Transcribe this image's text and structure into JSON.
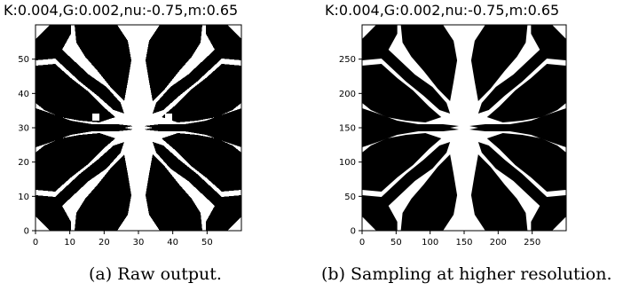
{
  "figures": [
    {
      "title": "K:0.004,G:0.002,nu:-0.75,m:0.65",
      "caption": "(a) Raw output.",
      "x_ticks": [
        "0",
        "10",
        "20",
        "30",
        "40",
        "50"
      ],
      "y_ticks": [
        "0",
        "10",
        "20",
        "30",
        "40",
        "50"
      ]
    },
    {
      "title": "K:0.004,G:0.002,nu:-0.75,m:0.65",
      "caption": "(b) Sampling at higher resolution.",
      "x_ticks": [
        "0",
        "50",
        "100",
        "150",
        "200",
        "250"
      ],
      "y_ticks": [
        "0",
        "50",
        "100",
        "150",
        "200",
        "250"
      ]
    }
  ],
  "chart_data": [
    {
      "type": "heatmap",
      "title": "K:0.004,G:0.002,nu:-0.75,m:0.65",
      "xlim": [
        0,
        60
      ],
      "ylim": [
        0,
        60
      ],
      "x_ticks": [
        0,
        10,
        20,
        30,
        40,
        50
      ],
      "y_ticks": [
        0,
        10,
        20,
        30,
        40,
        50
      ],
      "colors": {
        "solid": "#000000",
        "void": "#ffffff"
      },
      "resolution": "pixelated"
    },
    {
      "type": "heatmap",
      "title": "K:0.004,G:0.002,nu:-0.75,m:0.65",
      "xlim": [
        0,
        300
      ],
      "ylim": [
        0,
        300
      ],
      "x_ticks": [
        0,
        50,
        100,
        150,
        200,
        250
      ],
      "y_ticks": [
        0,
        50,
        100,
        150,
        200,
        250
      ],
      "colors": {
        "solid": "#000000",
        "void": "#ffffff"
      },
      "resolution": "smooth"
    }
  ]
}
